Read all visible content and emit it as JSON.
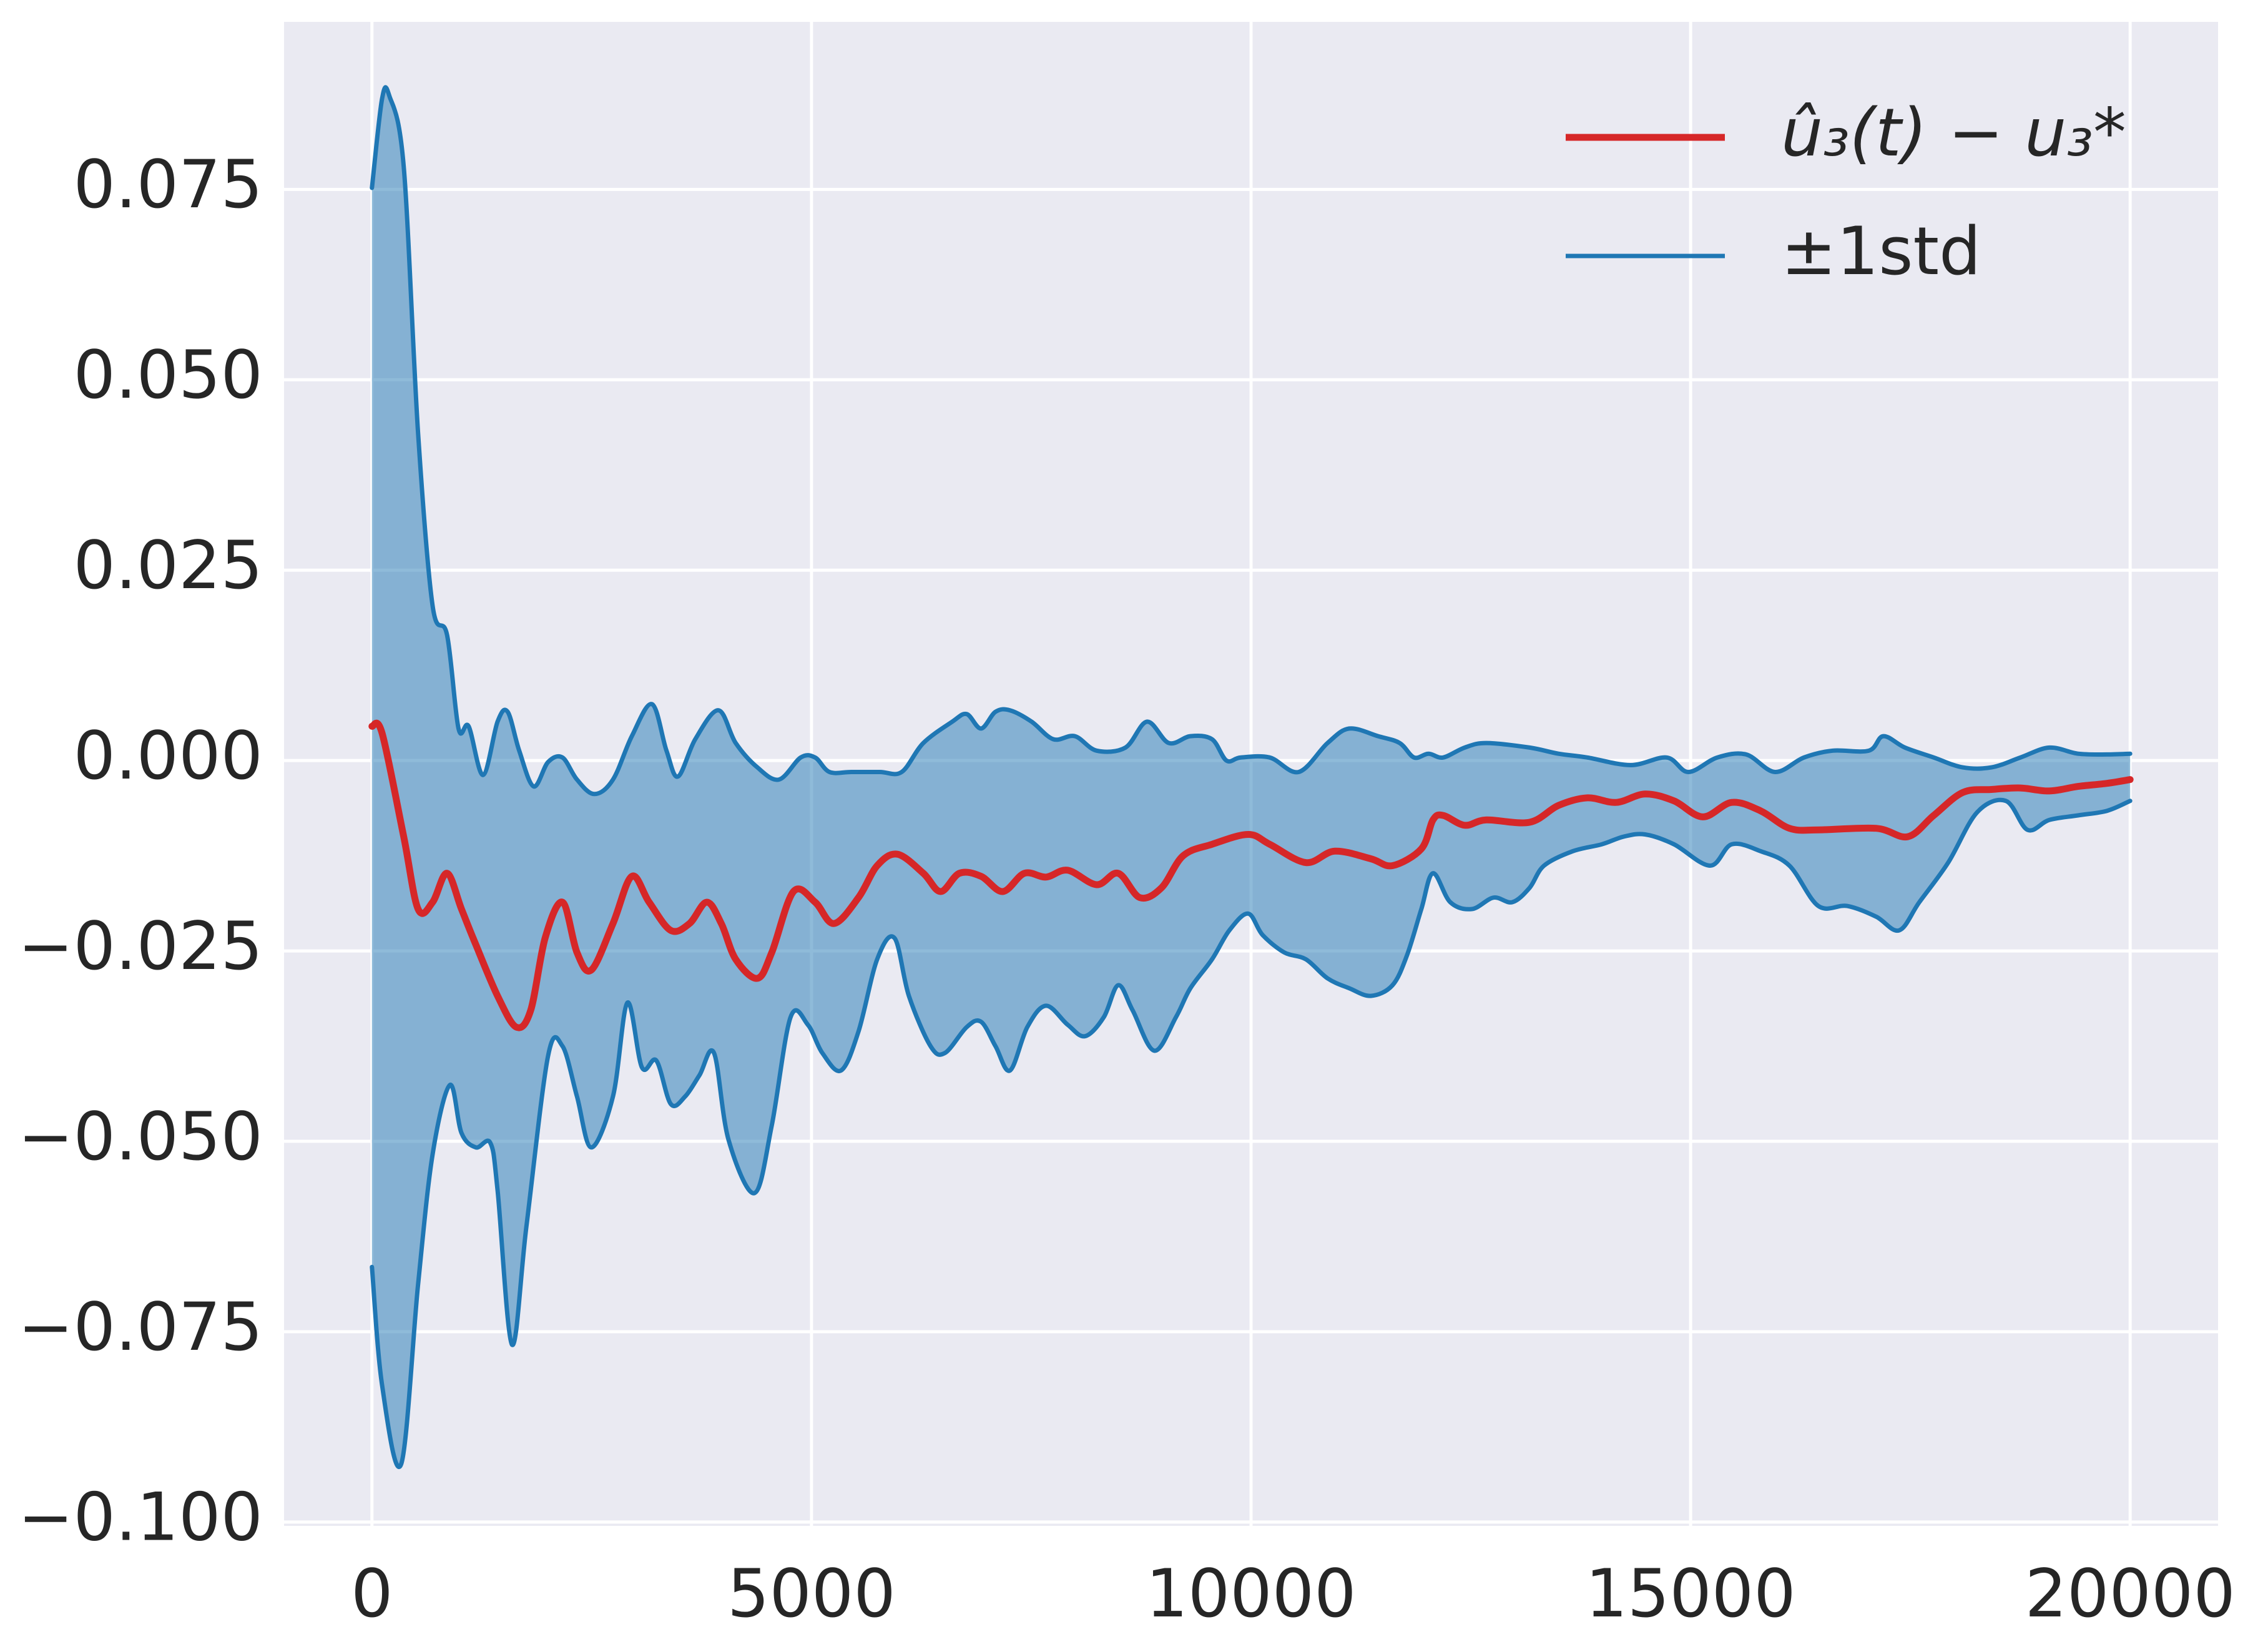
{
  "chart_data": {
    "type": "line",
    "xlim": [
      -1000,
      21000
    ],
    "xticks": [
      0,
      5000,
      10000,
      15000,
      20000
    ],
    "ylim": [
      -0.1005,
      0.097
    ],
    "yticks": [
      {
        "value": -0.1,
        "label": "−0.100"
      },
      {
        "value": -0.075,
        "label": "−0.075"
      },
      {
        "value": -0.05,
        "label": "−0.050"
      },
      {
        "value": -0.025,
        "label": "−0.025"
      },
      {
        "value": 0,
        "label": "0.000"
      },
      {
        "value": 0.025,
        "label": "0.025"
      },
      {
        "value": 0.05,
        "label": "0.050"
      },
      {
        "value": 0.075,
        "label": "0.075"
      }
    ],
    "grid": true,
    "legend": "upper right",
    "background": "#eaeaf2",
    "fill_color": "#1f77b4",
    "fill_opacity": 0.5,
    "series": [
      {
        "name": "û₃(t) − u₃*",
        "color": "#d62728",
        "width": 11,
        "x": [
          0,
          115,
          361,
          525,
          690,
          854,
          1018,
          1182,
          1429,
          1642,
          1806,
          1970,
          2167,
          2332,
          2496,
          2742,
          2956,
          3153,
          3399,
          3612,
          3809,
          3974,
          4138,
          4384,
          4548,
          4795,
          5041,
          5255,
          5534,
          5747,
          5977,
          6272,
          6469,
          6683,
          6929,
          7176,
          7422,
          7668,
          7914,
          8243,
          8489,
          8735,
          8982,
          9228,
          9556,
          9967,
          10213,
          10624,
          10952,
          11363,
          11609,
          11937,
          12069,
          12184,
          12430,
          12676,
          13169,
          13497,
          13826,
          14154,
          14482,
          14811,
          15139,
          15468,
          15796,
          16124,
          16453,
          17110,
          17471,
          17766,
          18095,
          18423,
          18752,
          19080,
          19408,
          19737,
          20000
        ],
        "values": [
          0.0045,
          0.0036,
          -0.01,
          -0.0195,
          -0.0186,
          -0.0148,
          -0.0195,
          -0.0242,
          -0.0309,
          -0.035,
          -0.0328,
          -0.0233,
          -0.0186,
          -0.0252,
          -0.0275,
          -0.0214,
          -0.0152,
          -0.0186,
          -0.0223,
          -0.0214,
          -0.0186,
          -0.0214,
          -0.0261,
          -0.0286,
          -0.0252,
          -0.0172,
          -0.0186,
          -0.0214,
          -0.018,
          -0.0138,
          -0.0123,
          -0.0148,
          -0.0172,
          -0.0148,
          -0.0152,
          -0.0172,
          -0.0148,
          -0.0153,
          -0.0144,
          -0.0163,
          -0.0148,
          -0.018,
          -0.0167,
          -0.0125,
          -0.011,
          -0.0097,
          -0.011,
          -0.0134,
          -0.0119,
          -0.0129,
          -0.0138,
          -0.0116,
          -0.0078,
          -0.0072,
          -0.0085,
          -0.0078,
          -0.0081,
          -0.0059,
          -0.0049,
          -0.0055,
          -0.0044,
          -0.0053,
          -0.0074,
          -0.0055,
          -0.0066,
          -0.0089,
          -0.0091,
          -0.0089,
          -0.01,
          -0.0072,
          -0.0042,
          -0.0038,
          -0.0036,
          -0.004,
          -0.0034,
          -0.003,
          -0.0025
        ]
      },
      {
        "name": "±1std",
        "color": "#1f77b4",
        "width": 7,
        "band": "upper",
        "x": [
          0,
          115,
          197,
          361,
          525,
          690,
          854,
          985,
          1100,
          1264,
          1429,
          1544,
          1675,
          1839,
          2003,
          2167,
          2332,
          2529,
          2742,
          2956,
          3186,
          3350,
          3481,
          3678,
          3941,
          4138,
          4384,
          4630,
          4877,
          5041,
          5205,
          5452,
          5780,
          6026,
          6272,
          6601,
          6765,
          6929,
          7093,
          7258,
          7504,
          7750,
          7996,
          8243,
          8571,
          8817,
          9064,
          9310,
          9556,
          9720,
          9884,
          10213,
          10542,
          10870,
          11117,
          11445,
          11691,
          11855,
          12020,
          12184,
          12430,
          12676,
          13169,
          13497,
          13826,
          14318,
          14729,
          14975,
          15303,
          15632,
          15960,
          16289,
          16617,
          17028,
          17192,
          17438,
          17766,
          18095,
          18423,
          18752,
          19080,
          19408,
          19737,
          20000
        ],
        "values": [
          0.0752,
          0.0869,
          0.0873,
          0.078,
          0.043,
          0.0203,
          0.0165,
          0.0042,
          0.0045,
          -0.0019,
          0.0051,
          0.0064,
          0.0013,
          -0.0034,
          -0.0002,
          0.0004,
          -0.0025,
          -0.0044,
          -0.0025,
          0.0032,
          0.0074,
          0.0013,
          -0.0021,
          0.0028,
          0.0066,
          0.0023,
          -0.0009,
          -0.0025,
          0.0004,
          0.0004,
          -0.0015,
          -0.0015,
          -0.0015,
          -0.0015,
          0.0023,
          0.0051,
          0.0061,
          0.0042,
          0.0064,
          0.0066,
          0.0051,
          0.0028,
          0.0032,
          0.0013,
          0.0017,
          0.0051,
          0.0023,
          0.0032,
          0.0028,
          0,
          0.0004,
          0.0004,
          -0.0015,
          0.0023,
          0.0042,
          0.0032,
          0.0023,
          0.0004,
          0.0009,
          0.0004,
          0.0017,
          0.0023,
          0.0017,
          0.0009,
          0.0004,
          -0.0006,
          0.0004,
          -0.0015,
          0.0004,
          0.0008,
          -0.0015,
          0.0004,
          0.0013,
          0.0013,
          0.0032,
          0.0017,
          0.0004,
          -0.0009,
          -0.0009,
          0.0004,
          0.0017,
          0.0009,
          0.0008,
          0.0009
        ]
      },
      {
        "color": "#1f77b4",
        "width": 7,
        "band": "lower",
        "x": [
          0,
          115,
          332,
          525,
          690,
          887,
          1018,
          1182,
          1346,
          1429,
          1593,
          1757,
          2003,
          2167,
          2332,
          2496,
          2742,
          2906,
          3071,
          3235,
          3399,
          3563,
          3727,
          3891,
          4056,
          4351,
          4548,
          4762,
          4959,
          5123,
          5336,
          5534,
          5747,
          5944,
          6108,
          6354,
          6518,
          6765,
          6929,
          7093,
          7258,
          7455,
          7668,
          7914,
          8111,
          8325,
          8489,
          8653,
          8900,
          9146,
          9310,
          9556,
          9753,
          9967,
          10131,
          10378,
          10624,
          10870,
          11117,
          11363,
          11609,
          11773,
          11937,
          12069,
          12266,
          12512,
          12758,
          12972,
          13169,
          13333,
          13661,
          13990,
          14236,
          14482,
          14811,
          15221,
          15468,
          15796,
          16124,
          16453,
          16781,
          17110,
          17372,
          17602,
          17930,
          18259,
          18587,
          18833,
          19080,
          19408,
          19737,
          20000
        ],
        "values": [
          -0.0665,
          -0.082,
          -0.0924,
          -0.0688,
          -0.0517,
          -0.0426,
          -0.0489,
          -0.0508,
          -0.0502,
          -0.0564,
          -0.0767,
          -0.0612,
          -0.0388,
          -0.0375,
          -0.0441,
          -0.0508,
          -0.0441,
          -0.0318,
          -0.0403,
          -0.0394,
          -0.0451,
          -0.0441,
          -0.0413,
          -0.0384,
          -0.0498,
          -0.0568,
          -0.0479,
          -0.0337,
          -0.0347,
          -0.0384,
          -0.0407,
          -0.0356,
          -0.0261,
          -0.0233,
          -0.0309,
          -0.0375,
          -0.0384,
          -0.035,
          -0.0343,
          -0.0375,
          -0.0407,
          -0.035,
          -0.0322,
          -0.0347,
          -0.0362,
          -0.0337,
          -0.0295,
          -0.0328,
          -0.0381,
          -0.0337,
          -0.0299,
          -0.0261,
          -0.0223,
          -0.0201,
          -0.0229,
          -0.0252,
          -0.0261,
          -0.0286,
          -0.0299,
          -0.0309,
          -0.0295,
          -0.0256,
          -0.0195,
          -0.0148,
          -0.0186,
          -0.0195,
          -0.018,
          -0.0186,
          -0.0167,
          -0.0138,
          -0.0119,
          -0.011,
          -0.01,
          -0.0097,
          -0.011,
          -0.0138,
          -0.011,
          -0.0119,
          -0.0138,
          -0.0191,
          -0.0191,
          -0.0205,
          -0.0223,
          -0.0186,
          -0.0134,
          -0.0068,
          -0.0053,
          -0.0091,
          -0.0078,
          -0.0072,
          -0.0066,
          -0.0053
        ]
      }
    ]
  }
}
